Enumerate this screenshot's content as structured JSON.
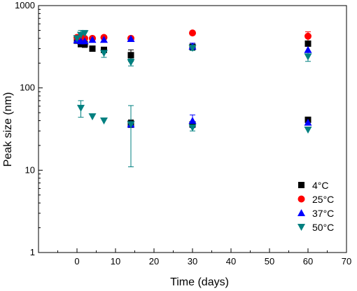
{
  "chart_data": {
    "type": "scatter",
    "xlabel": "Time (days)",
    "ylabel": "Peak size (nm)",
    "xlim": [
      -10,
      70
    ],
    "ylim": [
      1,
      1000
    ],
    "y_scale": "log",
    "grid": false,
    "legend_position": "bottom-right",
    "x_ticks": [
      0,
      10,
      20,
      30,
      40,
      50,
      60,
      70
    ],
    "x_tick_labels": [
      "0",
      "10",
      "20",
      "30",
      "40",
      "50",
      "60",
      "70"
    ],
    "y_ticks": [
      1,
      10,
      100,
      1000
    ],
    "y_tick_labels": [
      "1",
      "10",
      "100",
      "1000"
    ],
    "series": [
      {
        "name": "4°C",
        "marker": "square",
        "color": "#000000",
        "points": [
          {
            "x": 0,
            "y": 375,
            "err": 0
          },
          {
            "x": 1,
            "y": 340,
            "err": 25
          },
          {
            "x": 2,
            "y": 340,
            "err": 30
          },
          {
            "x": 4,
            "y": 300,
            "err": 0
          },
          {
            "x": 7,
            "y": 290,
            "err": 0
          },
          {
            "x": 14,
            "y": 250,
            "err": 40
          },
          {
            "x": 30,
            "y": 315,
            "err": 0
          },
          {
            "x": 60,
            "y": 345,
            "err": 0
          },
          {
            "x": 14,
            "y": 37,
            "err": 4
          },
          {
            "x": 30,
            "y": 36,
            "err": 0
          },
          {
            "x": 60,
            "y": 41,
            "err": 0
          }
        ]
      },
      {
        "name": "25°C",
        "marker": "circle",
        "color": "#ff0000",
        "points": [
          {
            "x": 0,
            "y": 410,
            "err": 0
          },
          {
            "x": 1,
            "y": 420,
            "err": 0
          },
          {
            "x": 2,
            "y": 400,
            "err": 0
          },
          {
            "x": 4,
            "y": 400,
            "err": 0
          },
          {
            "x": 7,
            "y": 410,
            "err": 0
          },
          {
            "x": 14,
            "y": 400,
            "err": 0
          },
          {
            "x": 30,
            "y": 465,
            "err": 0
          },
          {
            "x": 60,
            "y": 425,
            "err": 55
          }
        ]
      },
      {
        "name": "37°C",
        "marker": "triangle-up",
        "color": "#0000ff",
        "points": [
          {
            "x": 0,
            "y": 380,
            "err": 0
          },
          {
            "x": 1,
            "y": 370,
            "err": 0
          },
          {
            "x": 2,
            "y": 370,
            "err": 0
          },
          {
            "x": 4,
            "y": 385,
            "err": 0
          },
          {
            "x": 7,
            "y": 385,
            "err": 0
          },
          {
            "x": 14,
            "y": 395,
            "err": 25
          },
          {
            "x": 30,
            "y": 320,
            "err": 30
          },
          {
            "x": 60,
            "y": 290,
            "err": 0
          },
          {
            "x": 14,
            "y": 36,
            "err": 0
          },
          {
            "x": 30,
            "y": 40,
            "err": 7
          },
          {
            "x": 60,
            "y": 38,
            "err": 0
          }
        ]
      },
      {
        "name": "50°C",
        "marker": "triangle-down",
        "color": "#008080",
        "points": [
          {
            "x": 0,
            "y": 400,
            "err": 0
          },
          {
            "x": 1,
            "y": 440,
            "err": 60
          },
          {
            "x": 2,
            "y": 460,
            "err": 40
          },
          {
            "x": 7,
            "y": 265,
            "err": 30
          },
          {
            "x": 14,
            "y": 205,
            "err": 20
          },
          {
            "x": 30,
            "y": 305,
            "err": 20
          },
          {
            "x": 60,
            "y": 240,
            "err": 30
          },
          {
            "x": 1,
            "y": 57,
            "err": 13
          },
          {
            "x": 4,
            "y": 45,
            "err": 0
          },
          {
            "x": 7,
            "y": 40,
            "err": 0
          },
          {
            "x": 14,
            "y": 36,
            "err": 25
          },
          {
            "x": 30,
            "y": 33,
            "err": 3
          },
          {
            "x": 60,
            "y": 31,
            "err": 0
          }
        ]
      }
    ]
  }
}
